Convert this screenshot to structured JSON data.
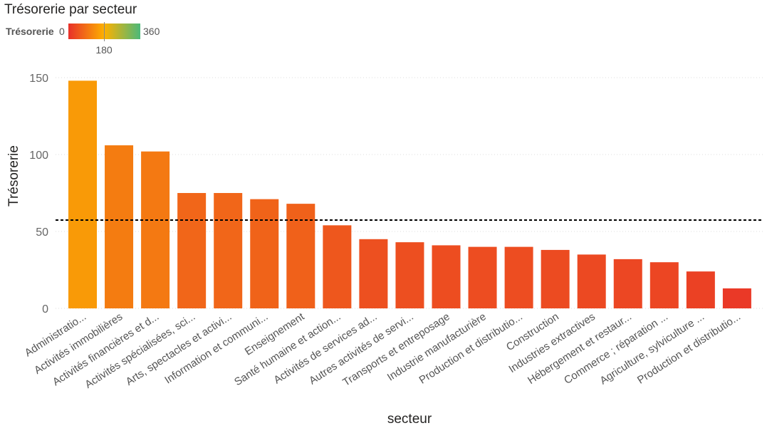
{
  "chart_data": {
    "type": "bar",
    "title": "Trésorerie par secteur",
    "xlabel": "secteur",
    "ylabel": "Trésorerie",
    "ylim": [
      0,
      160
    ],
    "yticks": [
      0,
      50,
      100,
      150
    ],
    "grid": "horizontal dotted",
    "legend": {
      "title": "Trésorerie",
      "type": "color-gradient",
      "min_label": "0",
      "mid_label": "180",
      "max_label": "360",
      "min": 0,
      "mid": 180,
      "max": 360,
      "colors": {
        "min": "#E8302A",
        "mid": "#FDB100",
        "max": "#4CB97A"
      },
      "placement": "top-left"
    },
    "reference_line": {
      "value": 57.4,
      "style": "dashed",
      "color": "#000000"
    },
    "categories": [
      "Administratio...",
      "Activités immobilières",
      "Activités financières et d...",
      "Activités spécialisées, sci...",
      "Arts, spectacles et activi...",
      "Information et communi...",
      "Enseignement",
      "Santé humaine et action...",
      "Activités de services ad...",
      "Autres activités de servi...",
      "Transports et entreposage",
      "Industrie manufacturière",
      "Production et distributio...",
      "Construction",
      "Industries extractives",
      "Hébergement et restaur...",
      "Commerce ; réparation ...",
      "Agriculture, sylviculture ...",
      "Production et distributio..."
    ],
    "values": [
      148,
      106,
      102,
      75,
      75,
      71,
      68,
      54,
      45,
      43,
      41,
      40,
      40,
      38,
      35,
      32,
      30,
      24,
      13
    ]
  }
}
